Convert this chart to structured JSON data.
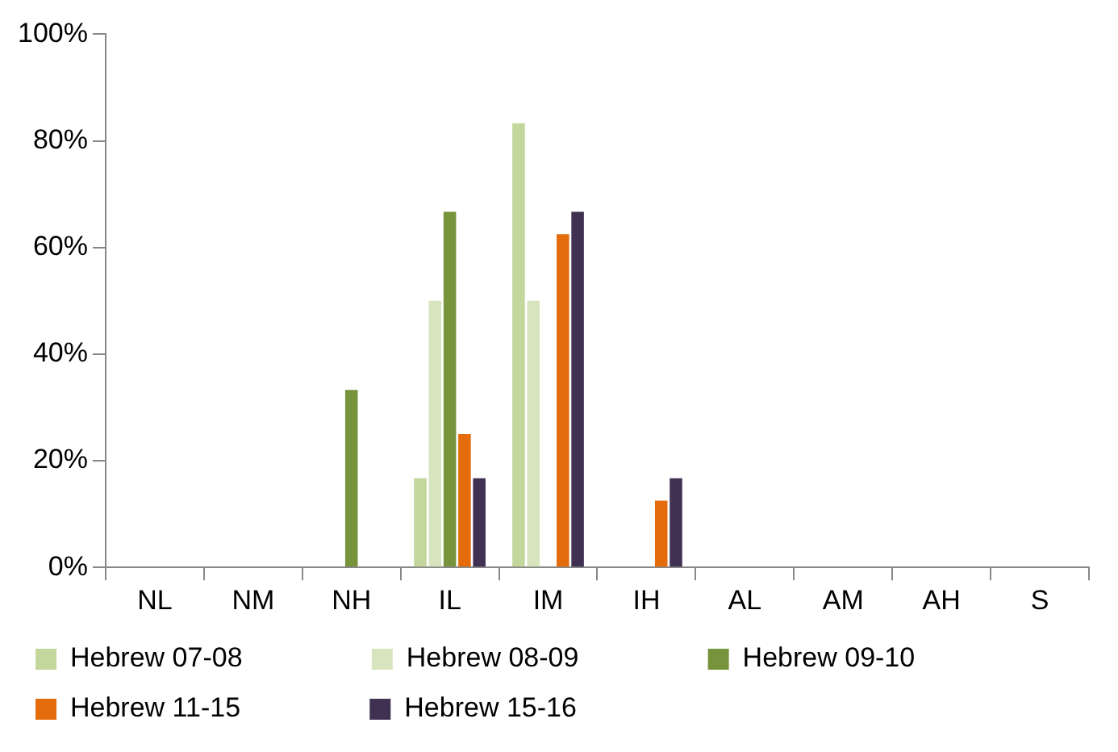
{
  "chart_data": {
    "type": "bar",
    "categories": [
      "NL",
      "NM",
      "NH",
      "IL",
      "IM",
      "IH",
      "AL",
      "AM",
      "AH",
      "S"
    ],
    "series": [
      {
        "name": "Hebrew 07-08",
        "color": "#c3d69b",
        "values": [
          0,
          0,
          0,
          16.7,
          83.3,
          0,
          0,
          0,
          0,
          0
        ]
      },
      {
        "name": "Hebrew 08-09",
        "color": "#d7e4bd",
        "values": [
          0,
          0,
          0,
          50,
          50,
          0,
          0,
          0,
          0,
          0
        ]
      },
      {
        "name": "Hebrew 09-10",
        "color": "#77933c",
        "values": [
          0,
          0,
          33.3,
          66.7,
          0,
          0,
          0,
          0,
          0,
          0
        ]
      },
      {
        "name": "Hebrew 11-15",
        "color": "#e46c0a",
        "values": [
          0,
          0,
          0,
          25,
          62.5,
          12.5,
          0,
          0,
          0,
          0
        ]
      },
      {
        "name": "Hebrew 15-16",
        "color": "#403152",
        "values": [
          0,
          0,
          0,
          16.7,
          66.7,
          16.7,
          0,
          0,
          0,
          0
        ]
      }
    ],
    "ylim": [
      0,
      100
    ],
    "yticks": [
      {
        "value": 0,
        "label": "0%"
      },
      {
        "value": 20,
        "label": "20%"
      },
      {
        "value": 40,
        "label": "40%"
      },
      {
        "value": 60,
        "label": "60%"
      },
      {
        "value": 80,
        "label": "80%"
      },
      {
        "value": 100,
        "label": "100%"
      }
    ],
    "grid": false,
    "legend": "bottom"
  }
}
